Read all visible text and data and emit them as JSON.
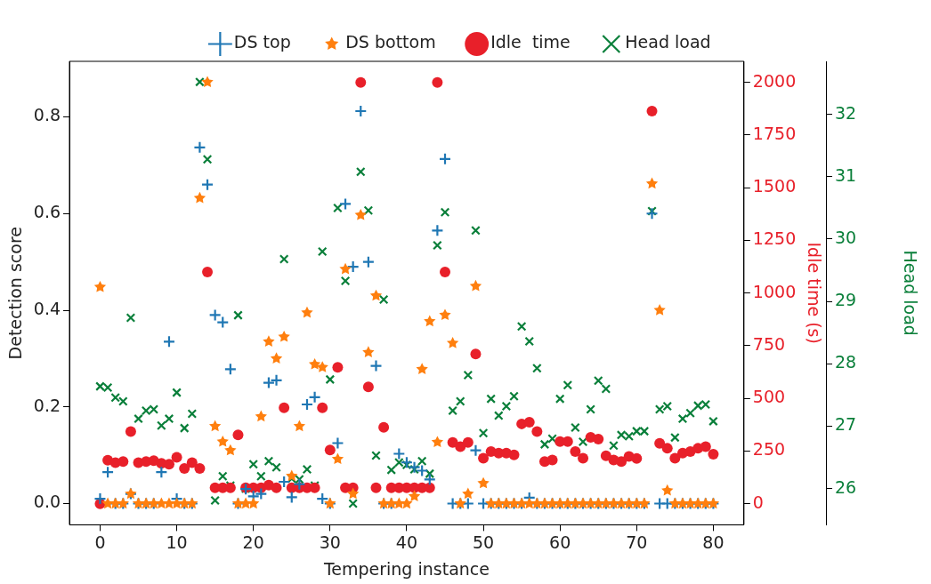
{
  "chart_data": {
    "type": "scatter",
    "xlabel": "Tempering instance",
    "ylabel": "Detection score",
    "y2label": "Idle time (s)",
    "y3label": "Head load",
    "x": [
      0,
      1,
      2,
      3,
      4,
      5,
      6,
      7,
      8,
      9,
      10,
      11,
      12,
      13,
      14,
      15,
      16,
      17,
      18,
      19,
      20,
      21,
      22,
      23,
      24,
      25,
      26,
      27,
      28,
      29,
      30,
      31,
      32,
      33,
      34,
      35,
      36,
      37,
      38,
      39,
      40,
      41,
      42,
      43,
      44,
      45,
      46,
      47,
      48,
      49,
      50,
      51,
      52,
      53,
      54,
      55,
      56,
      57,
      58,
      59,
      60,
      61,
      62,
      63,
      64,
      65,
      66,
      67,
      68,
      69,
      70,
      71,
      72,
      73,
      74,
      75,
      76,
      77,
      78,
      79,
      80
    ],
    "xlim": [
      -4,
      84
    ],
    "xticks": [
      0,
      10,
      20,
      30,
      40,
      50,
      60,
      70,
      80
    ],
    "ylim": [
      -0.044,
      0.915
    ],
    "yticks": [
      {
        "value": 0,
        "label": "0.0"
      },
      {
        "value": 0.2,
        "label": "0.2"
      },
      {
        "value": 0.4,
        "label": "0.4"
      },
      {
        "value": 0.6,
        "label": "0.6"
      },
      {
        "value": 0.8,
        "label": "0.8"
      }
    ],
    "y2lim": [
      -100,
      2100
    ],
    "y2ticks": [
      0,
      250,
      500,
      750,
      1000,
      1250,
      1500,
      1750,
      2000
    ],
    "y3lim": [
      25.42,
      32.85
    ],
    "y3ticks": [
      26,
      27,
      28,
      29,
      30,
      31,
      32
    ],
    "legend": "top",
    "grid": false,
    "series": [
      {
        "name": "DS top",
        "color": "#1f77b4",
        "marker": "plus",
        "values": [
          0.01,
          0.065,
          0,
          0,
          0.02,
          0,
          0,
          0,
          0.065,
          0.335,
          0.01,
          0,
          0,
          0.737,
          0.66,
          0.39,
          0.375,
          0.278,
          0,
          0.03,
          0.015,
          0.02,
          0.25,
          0.255,
          0.045,
          0.013,
          0.04,
          0.205,
          0.22,
          0.01,
          0,
          0.125,
          0.62,
          0.49,
          0.812,
          0.5,
          0.285,
          0,
          0,
          0.103,
          0.085,
          0.075,
          0.068,
          0.05,
          0.565,
          0.713,
          0,
          0,
          0,
          0.11,
          0,
          0,
          0,
          0,
          0,
          0,
          0.012,
          0,
          0,
          0,
          0,
          0,
          0,
          0,
          0,
          0,
          0,
          0,
          0,
          0,
          0,
          0,
          0.6,
          0,
          0,
          0,
          0,
          0,
          0,
          0,
          0
        ]
      },
      {
        "name": "DS bottom",
        "color": "#ff7f0e",
        "marker": "star",
        "values": [
          0.448,
          0,
          0,
          0,
          0.02,
          0,
          0,
          0,
          0,
          0,
          0,
          0,
          0,
          0.632,
          0.872,
          0.16,
          0.128,
          0.11,
          0,
          0,
          0,
          0.18,
          0.335,
          0.3,
          0.345,
          0.057,
          0.16,
          0.395,
          0.288,
          0.282,
          0,
          0.092,
          0.485,
          0.02,
          0.597,
          0.313,
          0.43,
          0,
          0,
          0,
          0,
          0.015,
          0.278,
          0.377,
          0.127,
          0.39,
          0.332,
          0,
          0.02,
          0.45,
          0.042,
          0,
          0,
          0,
          0,
          0,
          0,
          0,
          0,
          0,
          0,
          0,
          0,
          0,
          0,
          0,
          0,
          0,
          0,
          0,
          0,
          0,
          0.662,
          0.4,
          0.027,
          0,
          0,
          0,
          0,
          0,
          0
        ]
      },
      {
        "name": "Idle  time",
        "color": "#e8202a",
        "marker": "circle",
        "axis": "y2",
        "values": [
          0,
          207,
          195,
          200,
          343,
          195,
          200,
          204,
          192,
          188,
          220,
          168,
          195,
          168,
          1100,
          76,
          76,
          76,
          327,
          76,
          76,
          76,
          88,
          76,
          455,
          76,
          76,
          76,
          76,
          455,
          255,
          647,
          76,
          76,
          2000,
          555,
          76,
          363,
          76,
          76,
          76,
          76,
          76,
          76,
          2000,
          1100,
          291,
          271,
          291,
          711,
          216,
          248,
          240,
          240,
          232,
          379,
          387,
          343,
          200,
          208,
          295,
          295,
          248,
          216,
          315,
          307,
          228,
          208,
          200,
          224,
          215,
          null,
          1864,
          287,
          263,
          216,
          240,
          248,
          263,
          271,
          235
        ]
      },
      {
        "name": "Head load",
        "color": "#0a7f3a",
        "marker": "x",
        "axis": "y3",
        "values": [
          27.64,
          27.62,
          27.46,
          27.4,
          28.74,
          27.12,
          27.25,
          27.27,
          27.01,
          27.12,
          27.54,
          26.97,
          27.2,
          32.52,
          31.28,
          25.81,
          26.2,
          26.05,
          28.78,
          26.0,
          26.39,
          26.2,
          26.44,
          26.34,
          29.68,
          26.16,
          26.15,
          26.31,
          26.05,
          29.8,
          27.75,
          30.5,
          29.33,
          25.76,
          31.08,
          30.46,
          26.53,
          29.03,
          26.3,
          26.42,
          26.38,
          26.31,
          26.44,
          26.24,
          29.9,
          30.43,
          27.25,
          27.4,
          27.82,
          30.14,
          26.89,
          27.44,
          27.17,
          27.32,
          27.48,
          28.6,
          28.36,
          27.93,
          26.71,
          26.8,
          27.44,
          27.66,
          26.98,
          26.75,
          27.27,
          27.73,
          27.6,
          26.69,
          26.86,
          26.84,
          26.92,
          26.92,
          30.45,
          27.27,
          27.32,
          26.82,
          27.12,
          27.21,
          27.33,
          27.35,
          27.08
        ]
      }
    ]
  }
}
